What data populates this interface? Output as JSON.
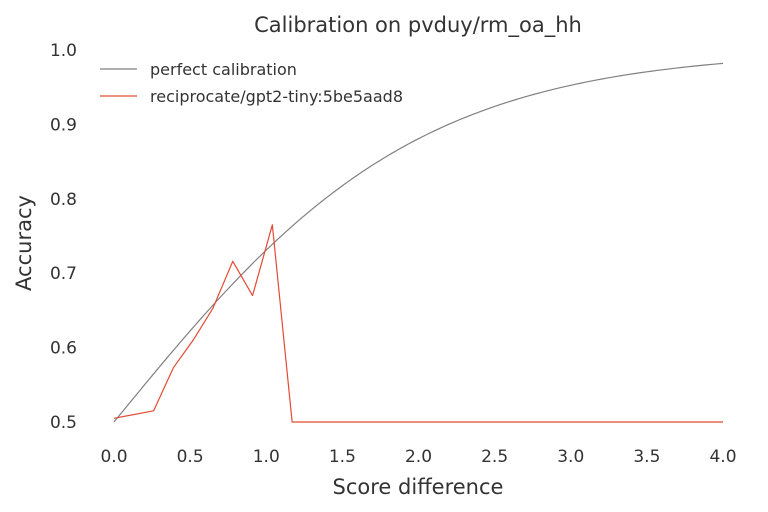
{
  "chart_data": {
    "type": "line",
    "title": "Calibration on pvduy/rm_oa_hh",
    "xlabel": "Score difference",
    "ylabel": "Accuracy",
    "xlim": [
      0,
      4
    ],
    "ylim": [
      0.5,
      1.0
    ],
    "x_ticks": [
      "0.0",
      "0.5",
      "1.0",
      "1.5",
      "2.0",
      "2.5",
      "3.0",
      "3.5",
      "4.0"
    ],
    "y_ticks": [
      "0.5",
      "0.6",
      "0.7",
      "0.8",
      "0.9",
      "1.0"
    ],
    "grid": false,
    "legend_position": "top-left",
    "series": [
      {
        "name": "perfect calibration",
        "color": "#808080",
        "curve": "sigmoid",
        "x": [
          0.0,
          0.25,
          0.5,
          0.75,
          1.0,
          1.25,
          1.5,
          1.75,
          2.0,
          2.25,
          2.5,
          2.75,
          3.0,
          3.25,
          3.5,
          3.75,
          4.0
        ],
        "y": [
          0.5,
          0.562,
          0.622,
          0.679,
          0.731,
          0.777,
          0.818,
          0.852,
          0.881,
          0.905,
          0.924,
          0.94,
          0.953,
          0.963,
          0.971,
          0.977,
          0.982
        ]
      },
      {
        "name": "reciprocate/gpt2-tiny:5be5aad8",
        "color": "#e24a33",
        "x": [
          0.0,
          0.26,
          0.39,
          0.52,
          0.65,
          0.78,
          0.91,
          1.04,
          1.17,
          1.3,
          1.5,
          2.0,
          2.5,
          3.0,
          3.5,
          4.0
        ],
        "y": [
          0.505,
          0.515,
          0.573,
          0.61,
          0.653,
          0.716,
          0.67,
          0.765,
          0.5,
          0.5,
          0.5,
          0.5,
          0.5,
          0.5,
          0.5,
          0.5
        ]
      }
    ]
  }
}
